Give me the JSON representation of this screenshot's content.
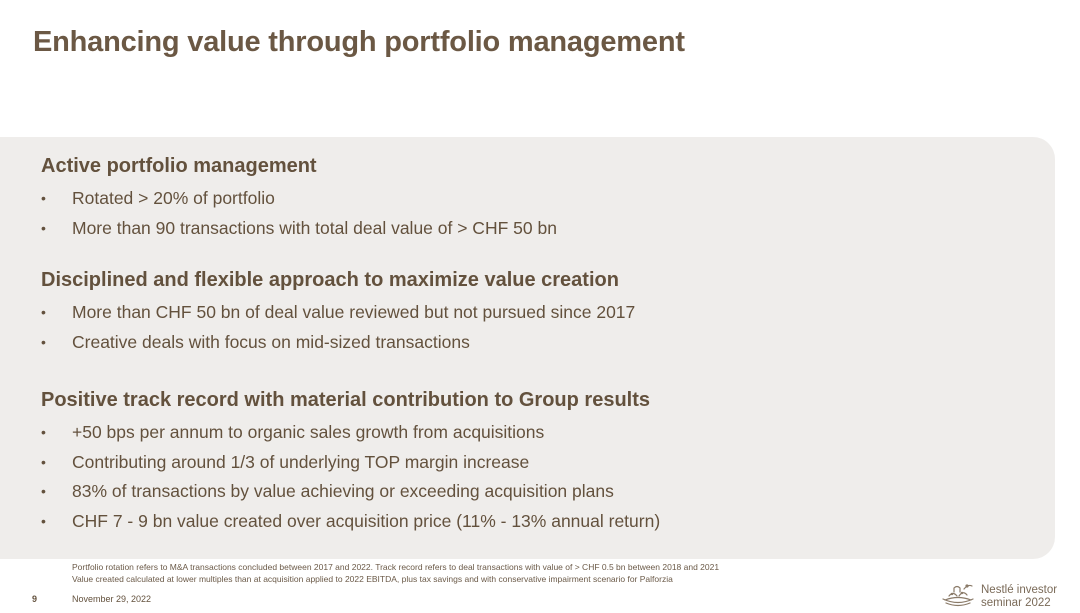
{
  "title": "Enhancing value through portfolio management",
  "sections": [
    {
      "heading": "Active portfolio management",
      "bullets": [
        "Rotated > 20% of portfolio",
        "More than 90 transactions with total deal value of > CHF 50 bn"
      ]
    },
    {
      "heading": "Disciplined and flexible approach to maximize value creation",
      "bullets": [
        "More than CHF 50 bn of deal value reviewed but not pursued since 2017",
        "Creative deals with focus on mid-sized transactions"
      ]
    },
    {
      "heading": "Positive track record with material contribution to Group results",
      "bullets": [
        "+50 bps per annum to organic sales growth from acquisitions",
        "Contributing around 1/3 of underlying TOP margin increase",
        "83% of transactions by value achieving or exceeding acquisition plans",
        "CHF 7 - 9 bn value created over acquisition price (11% - 13% annual return)"
      ]
    }
  ],
  "bullet_char": "•",
  "footnotes": [
    "Portfolio rotation refers to M&A transactions concluded between 2017 and 2022. Track record refers to deal transactions with value of > CHF 0.5 bn between 2018 and 2021",
    "Value created calculated at lower multiples than at acquisition applied to 2022 EBITDA, plus tax savings and with conservative impairment scenario for Palforzia"
  ],
  "footer": {
    "page_number": "9",
    "date": "November 29, 2022",
    "brand_line1": "Nestlé investor",
    "brand_line2": "seminar 2022",
    "logo_icon": "nestle-nest-logo-icon"
  },
  "colors": {
    "title": "#6b5844",
    "text": "#63513d",
    "panel_background": "#efedeb"
  }
}
